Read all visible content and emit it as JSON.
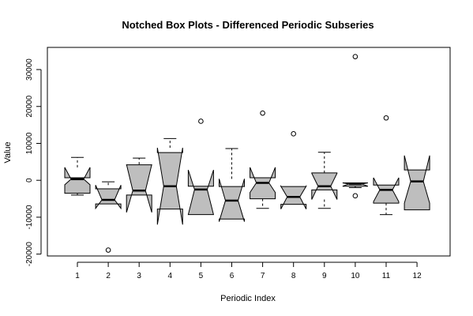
{
  "chart_data": {
    "type": "boxplot",
    "notched": true,
    "title": "Notched Box Plots - Differenced Periodic Subseries",
    "xlabel": "Periodic Index",
    "ylabel": "Value",
    "categories": [
      "1",
      "2",
      "3",
      "4",
      "5",
      "6",
      "7",
      "8",
      "9",
      "10",
      "11",
      "12"
    ],
    "y_ticks": [
      -20000,
      -10000,
      0,
      10000,
      20000,
      30000
    ],
    "y_tick_labels": [
      "-20000",
      "-10000",
      "0",
      "10000",
      "20000",
      "30000"
    ],
    "ylim": [
      -20500,
      36000
    ],
    "boxes": [
      {
        "category": "1",
        "whisker_low": -4000,
        "q1": -3500,
        "median": 300,
        "q3": 700,
        "whisker_high": 6200,
        "notch_low": -1200,
        "notch_high": 3500,
        "outliers": []
      },
      {
        "category": "2",
        "whisker_low": -6500,
        "q1": -6400,
        "median": -5300,
        "q3": -2300,
        "whisker_high": -400,
        "notch_low": -7600,
        "notch_high": -1300,
        "outliers": [
          -18900
        ]
      },
      {
        "category": "3",
        "whisker_low": -4100,
        "q1": -4000,
        "median": -2800,
        "q3": 4200,
        "whisker_high": 6000,
        "notch_low": -8700,
        "notch_high": 4300,
        "outliers": []
      },
      {
        "category": "4",
        "whisker_low": -8400,
        "q1": -7800,
        "median": -1600,
        "q3": 7500,
        "whisker_high": 11300,
        "notch_low": -12000,
        "notch_high": 8800,
        "outliers": []
      },
      {
        "category": "5",
        "whisker_low": -9300,
        "q1": -9300,
        "median": -2500,
        "q3": -1600,
        "whisker_high": -1600,
        "notch_low": -9300,
        "notch_high": 2800,
        "outliers": [
          16000
        ]
      },
      {
        "category": "6",
        "whisker_low": -11200,
        "q1": -10500,
        "median": -5500,
        "q3": -1700,
        "whisker_high": 8600,
        "notch_low": -11200,
        "notch_high": 400,
        "outliers": []
      },
      {
        "category": "7",
        "whisker_low": -7600,
        "q1": -5000,
        "median": -700,
        "q3": 700,
        "whisker_high": 700,
        "notch_low": -3300,
        "notch_high": 3500,
        "outliers": [
          18200
        ]
      },
      {
        "category": "8",
        "whisker_low": -7900,
        "q1": -6500,
        "median": -4500,
        "q3": -1700,
        "whisker_high": -1700,
        "notch_low": -7800,
        "notch_high": -1600,
        "outliers": [
          12600
        ]
      },
      {
        "category": "9",
        "whisker_low": -7600,
        "q1": -2600,
        "median": -1600,
        "q3": 2000,
        "whisker_high": 7600,
        "notch_low": -5200,
        "notch_high": 1900,
        "outliers": []
      },
      {
        "category": "10",
        "whisker_low": -2000,
        "q1": -1600,
        "median": -1000,
        "q3": -700,
        "whisker_high": -700,
        "notch_low": -1600,
        "notch_high": -700,
        "outliers": [
          33500,
          -4200
        ]
      },
      {
        "category": "11",
        "whisker_low": -9300,
        "q1": -6200,
        "median": -2600,
        "q3": -1300,
        "whisker_high": -1300,
        "notch_low": -5800,
        "notch_high": 700,
        "outliers": [
          16900
        ]
      },
      {
        "category": "12",
        "whisker_low": -8000,
        "q1": -8000,
        "median": -300,
        "q3": 2800,
        "whisker_high": 5600,
        "notch_low": -6200,
        "notch_high": 6700,
        "outliers": []
      }
    ],
    "colors": {
      "box_fill": "#bebebe",
      "stroke": "#000000",
      "background": "#ffffff"
    }
  }
}
